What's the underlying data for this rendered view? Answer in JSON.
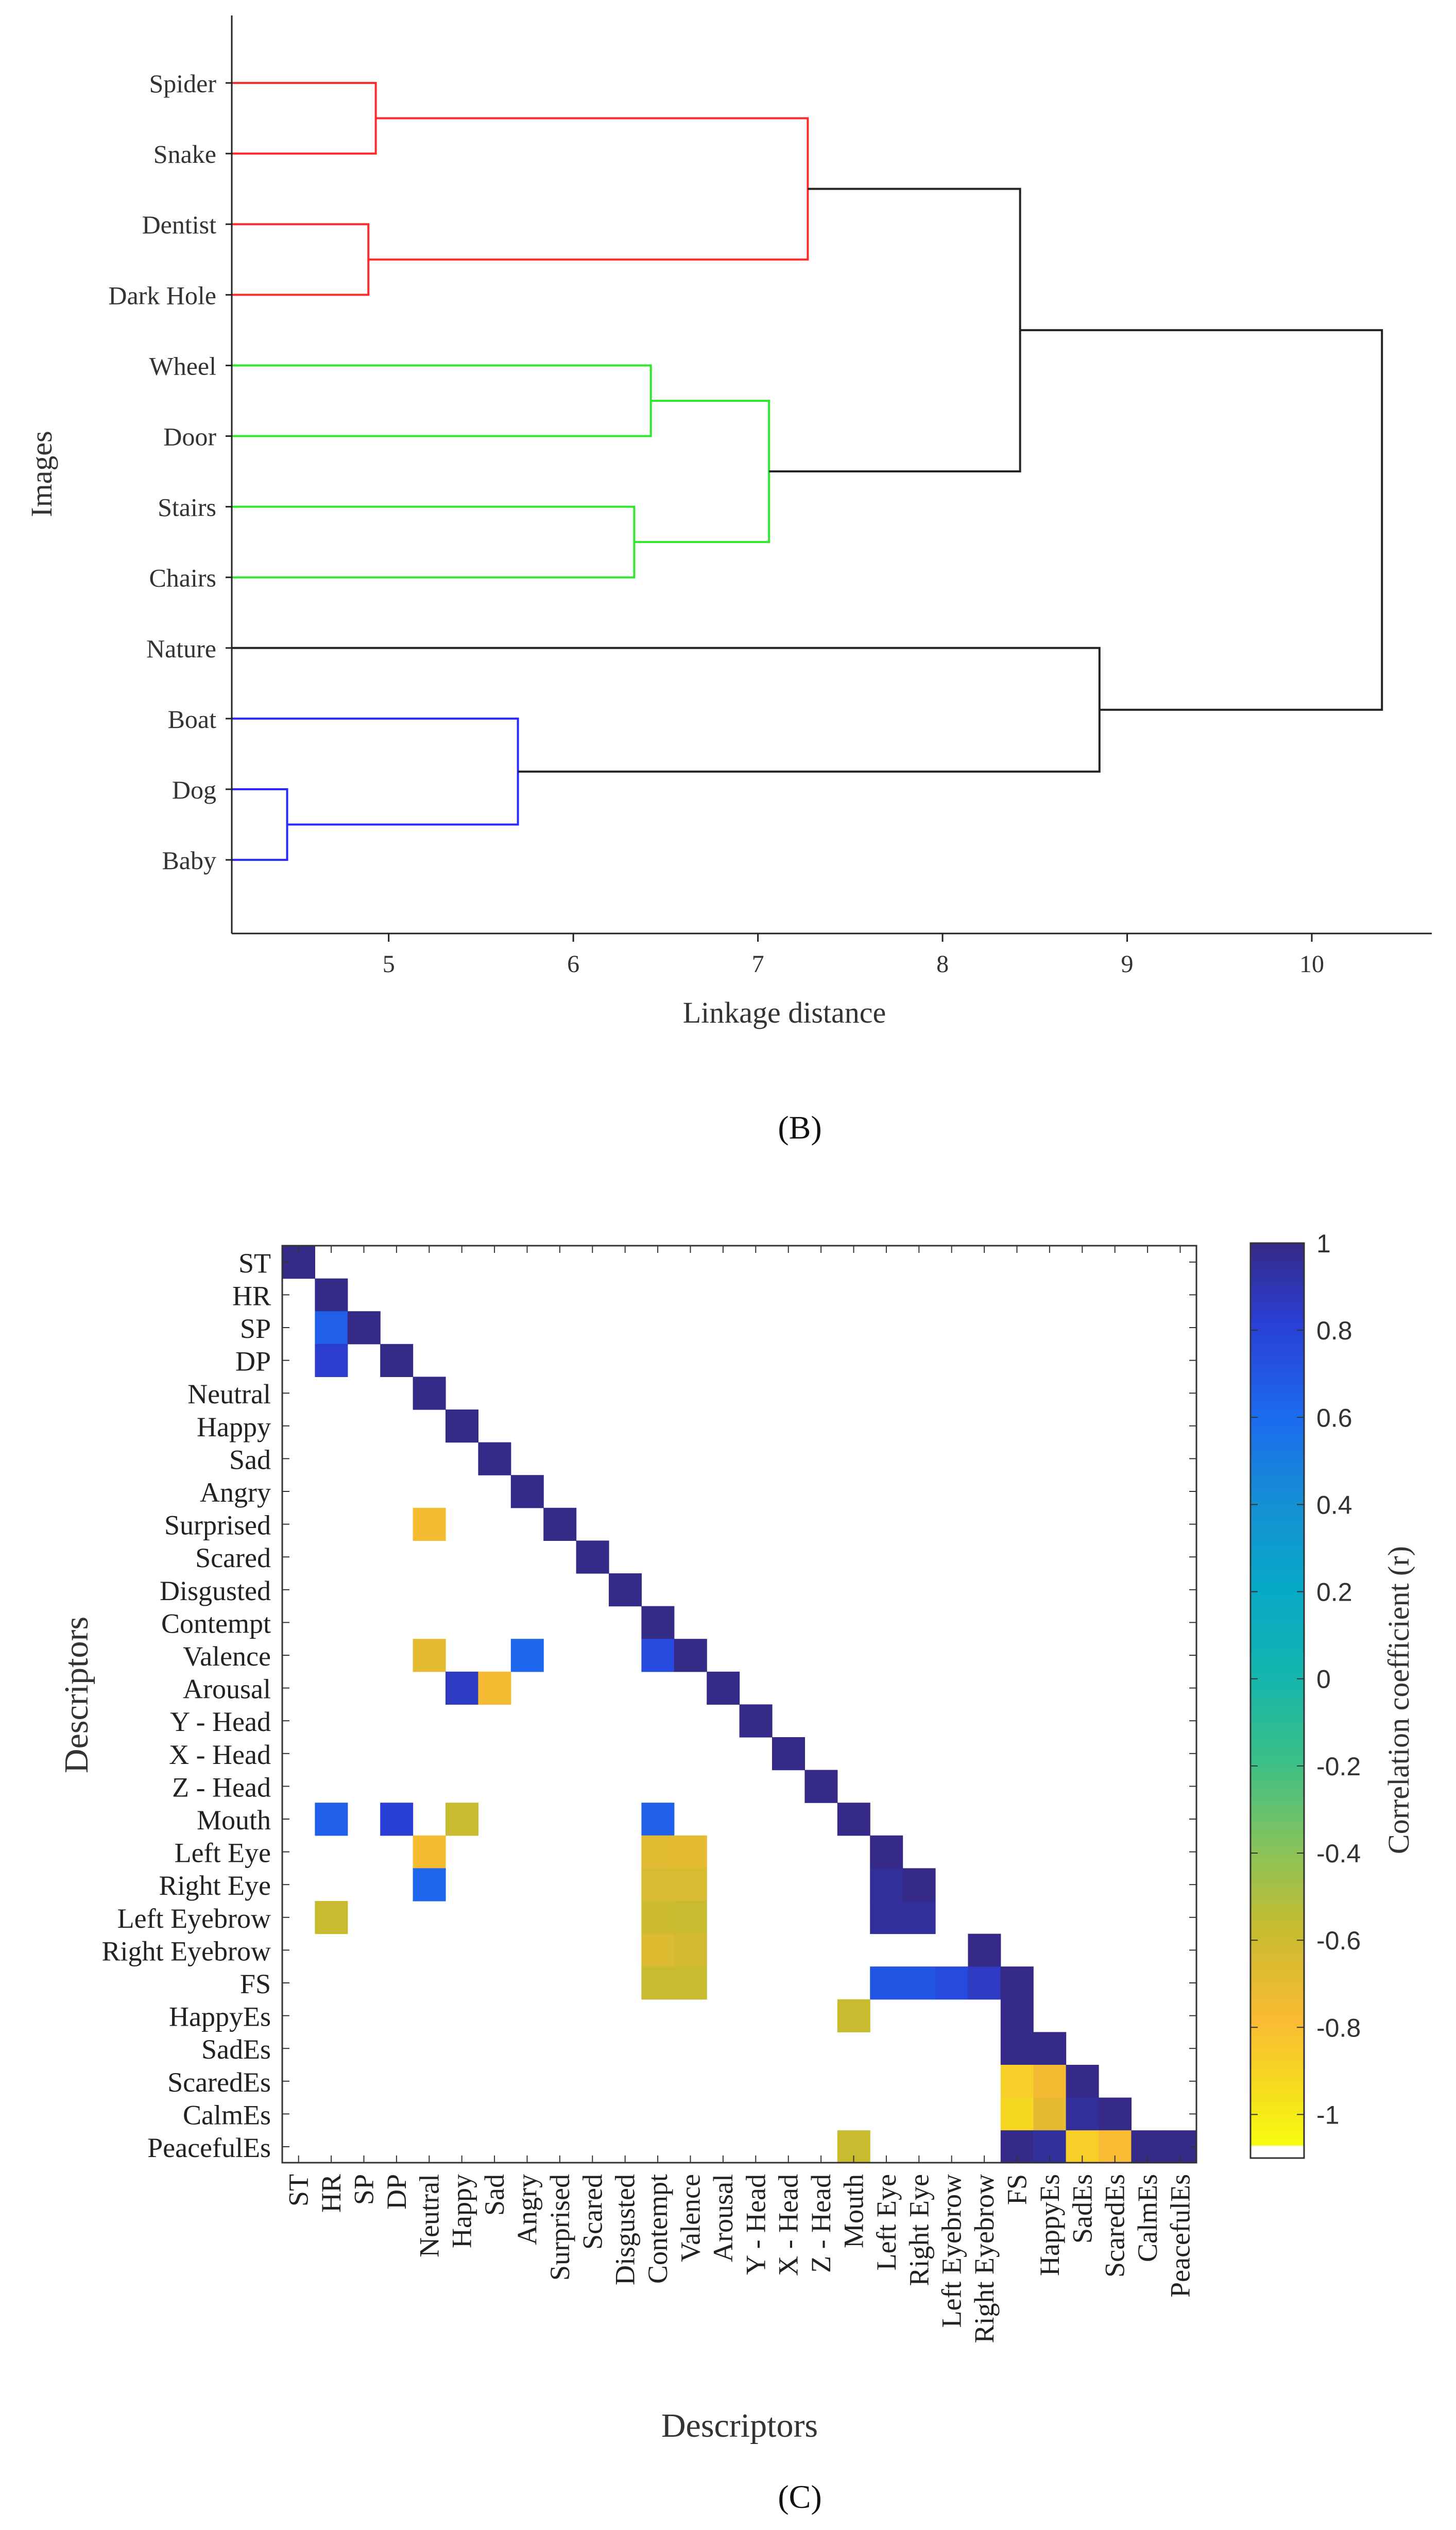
{
  "chart_data": [
    {
      "type": "dendrogram",
      "panel_label": "(B)",
      "xlabel": "Linkage distance",
      "ylabel": "Images",
      "xlim": [
        4.15,
        10.65
      ],
      "x_ticks": [
        5,
        6,
        7,
        8,
        9,
        10
      ],
      "leaves": [
        "Spider",
        "Snake",
        "Dentist",
        "Dark Hole",
        "Wheel",
        "Door",
        "Stairs",
        "Chairs",
        "Nature",
        "Boat",
        "Dog",
        "Baby"
      ],
      "links": [
        {
          "a": "Spider",
          "b": "Snake",
          "height": 4.93,
          "cluster": "red"
        },
        {
          "a": "Dentist",
          "b": "Dark Hole",
          "height": 4.89,
          "cluster": "red"
        },
        {
          "a": "Spider+Snake",
          "b": "Dentist+Dark Hole",
          "height": 7.27,
          "cluster": "red"
        },
        {
          "a": "Wheel",
          "b": "Door",
          "height": 6.42,
          "cluster": "green"
        },
        {
          "a": "Stairs",
          "b": "Chairs",
          "height": 6.33,
          "cluster": "green"
        },
        {
          "a": "Wheel+Door",
          "b": "Stairs+Chairs",
          "height": 7.06,
          "cluster": "green"
        },
        {
          "a": "Red cluster",
          "b": "Green cluster",
          "height": 8.42,
          "cluster": "black"
        },
        {
          "a": "Dog",
          "b": "Baby",
          "height": 4.45,
          "cluster": "blue"
        },
        {
          "a": "Boat",
          "b": "Dog+Baby",
          "height": 5.7,
          "cluster": "blue"
        },
        {
          "a": "Nature",
          "b": "Blue cluster",
          "height": 8.85,
          "cluster": "black"
        },
        {
          "a": "Red+Green",
          "b": "Nature+Blue",
          "height": 10.38,
          "cluster": "black"
        }
      ],
      "cluster_colors": {
        "red": "#ff2a2a",
        "green": "#2ee82e",
        "blue": "#2a2aff",
        "black": "#222222"
      }
    },
    {
      "type": "heatmap",
      "panel_label": "(C)",
      "xlabel": "Descriptors",
      "ylabel": "Descriptors",
      "colorbar_label": "Correlation coefficient (r)",
      "colorbar_range": [
        -1.1,
        1
      ],
      "colorbar_ticks": [
        1,
        0.8,
        0.6,
        0.4,
        0.2,
        0,
        -0.2,
        -0.4,
        -0.6,
        -0.8,
        -1
      ],
      "colorbar_tick_labels": [
        "1",
        "0.8",
        "0.6",
        "0.4",
        "0.2",
        "0",
        "-0.2",
        "-0.4",
        "-0.6",
        "-0.8",
        "-1"
      ],
      "labels": [
        "ST",
        "HR",
        "SP",
        "DP",
        "Neutral",
        "Happy",
        "Sad",
        "Angry",
        "Surprised",
        "Scared",
        "Disgusted",
        "Contempt",
        "Valence",
        "Arousal",
        "Y - Head",
        "X - Head",
        "Z - Head",
        "Mouth",
        "Left Eye",
        "Right Eye",
        "Left Eyebrow",
        "Right Eyebrow",
        "FS",
        "HappyEs",
        "SadEs",
        "ScaredEs",
        "CalmEs",
        "PeacefulEs"
      ],
      "cells": [
        [
          0,
          0,
          1
        ],
        [
          1,
          1,
          1
        ],
        [
          2,
          1,
          0.65
        ],
        [
          2,
          2,
          1
        ],
        [
          3,
          1,
          0.82
        ],
        [
          3,
          3,
          1
        ],
        [
          4,
          4,
          1
        ],
        [
          5,
          5,
          1
        ],
        [
          6,
          6,
          1
        ],
        [
          7,
          7,
          1
        ],
        [
          8,
          4,
          -0.78
        ],
        [
          8,
          8,
          1
        ],
        [
          9,
          9,
          1
        ],
        [
          10,
          10,
          1
        ],
        [
          11,
          11,
          1
        ],
        [
          12,
          4,
          -0.72
        ],
        [
          12,
          7,
          0.62
        ],
        [
          12,
          11,
          0.75
        ],
        [
          12,
          12,
          1
        ],
        [
          13,
          5,
          0.85
        ],
        [
          13,
          6,
          -0.78
        ],
        [
          13,
          13,
          1
        ],
        [
          14,
          14,
          1
        ],
        [
          15,
          15,
          1
        ],
        [
          16,
          16,
          1
        ],
        [
          17,
          1,
          0.65
        ],
        [
          17,
          3,
          0.8
        ],
        [
          17,
          5,
          -0.6
        ],
        [
          17,
          11,
          0.65
        ],
        [
          17,
          17,
          1
        ],
        [
          18,
          4,
          -0.78
        ],
        [
          18,
          11,
          -0.7
        ],
        [
          18,
          12,
          -0.72
        ],
        [
          18,
          18,
          1
        ],
        [
          19,
          4,
          0.62
        ],
        [
          19,
          11,
          -0.66
        ],
        [
          19,
          12,
          -0.66
        ],
        [
          19,
          18,
          0.95
        ],
        [
          19,
          19,
          1
        ],
        [
          20,
          1,
          -0.6
        ],
        [
          20,
          11,
          -0.62
        ],
        [
          20,
          12,
          -0.6
        ],
        [
          20,
          18,
          0.95
        ],
        [
          20,
          19,
          0.95
        ],
        [
          21,
          11,
          -0.68
        ],
        [
          21,
          12,
          -0.64
        ],
        [
          21,
          21,
          1
        ],
        [
          22,
          11,
          -0.6
        ],
        [
          22,
          12,
          -0.6
        ],
        [
          22,
          18,
          0.7
        ],
        [
          22,
          19,
          0.7
        ],
        [
          22,
          20,
          0.75
        ],
        [
          22,
          21,
          0.85
        ],
        [
          22,
          22,
          1
        ],
        [
          23,
          17,
          -0.6
        ],
        [
          23,
          22,
          1
        ],
        [
          24,
          22,
          1
        ],
        [
          24,
          23,
          1
        ],
        [
          25,
          22,
          -0.9
        ],
        [
          25,
          23,
          -0.78
        ],
        [
          25,
          24,
          1
        ],
        [
          26,
          22,
          -0.95
        ],
        [
          26,
          23,
          -0.72
        ],
        [
          26,
          24,
          0.95
        ],
        [
          26,
          25,
          1
        ],
        [
          27,
          17,
          -0.6
        ],
        [
          27,
          22,
          1
        ],
        [
          27,
          23,
          0.95
        ],
        [
          27,
          24,
          -0.9
        ],
        [
          27,
          25,
          -0.8
        ],
        [
          27,
          26,
          1
        ],
        [
          27,
          27,
          1
        ]
      ]
    }
  ]
}
